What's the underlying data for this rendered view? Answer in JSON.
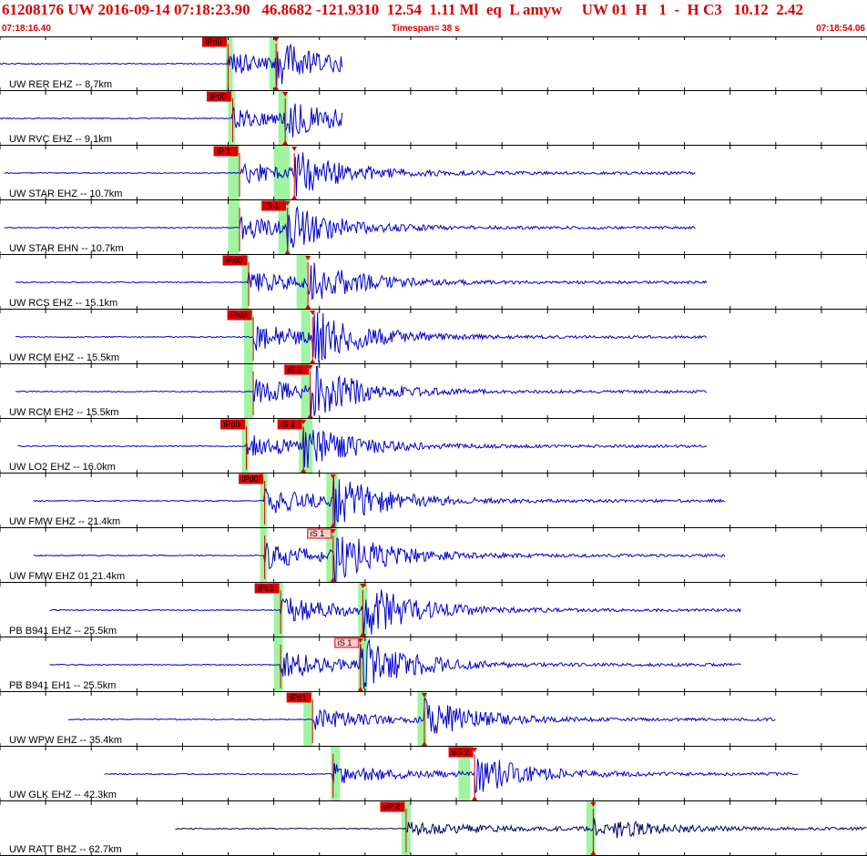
{
  "header": {
    "title": "61208176 UW 2016-09-14 07:18:23.90   46.8682 -121.9310  12.54  1.11 Ml  eq  L amyw     UW 01  H   1  -  H C3   10.12  2.42",
    "start_time": "07:18:16.40",
    "timespan": "Timespan=  38 s",
    "end_time": "07:18:54.06"
  },
  "colors": {
    "trace": "#0000cc",
    "accent": "#d80000",
    "window": "#9ff59f",
    "pick_box_light": "#ffcccc",
    "trace_last": "#000066"
  },
  "chart_data": {
    "type": "line",
    "title": "",
    "time_start_s": 0,
    "time_end_s": 38,
    "traces": [
      {
        "label": "UW RER EHZ -- 8.7km",
        "x0": 0,
        "x1": 15.0,
        "p": 10.0,
        "s": 12.1,
        "amp": 0.5,
        "pick": "iPd0",
        "pick_at": "p",
        "lightPick": false,
        "win": [
          [
            9.9,
            10.2
          ],
          [
            11.8,
            12.2
          ]
        ]
      },
      {
        "label": "UW RVC EHZ -- 9.1km",
        "x0": 0,
        "x1": 15.0,
        "p": 10.2,
        "s": 12.5,
        "amp": 0.45,
        "pick": "iPd0",
        "pick_at": "p",
        "lightPick": false,
        "win": [
          [
            10.0,
            10.3
          ],
          [
            12.2,
            12.6
          ]
        ]
      },
      {
        "label": "UW STAR EHZ -- 10.7km",
        "x0": 0.2,
        "x1": 30.5,
        "p": 10.5,
        "s": 12.9,
        "amp": 0.5,
        "pick": "iP 1",
        "pick_at": "p",
        "lightPick": false,
        "win": [
          [
            10.0,
            10.5
          ],
          [
            12.0,
            12.7
          ]
        ]
      },
      {
        "label": "UW STAR EHN -- 10.7km",
        "x0": 0.2,
        "x1": 30.5,
        "p": 10.5,
        "s": 12.6,
        "amp": 0.5,
        "pick": "iS 1",
        "pick_at": "s",
        "lightPick": false,
        "win": [
          [
            10.0,
            10.5
          ],
          [
            12.2,
            12.7
          ]
        ]
      },
      {
        "label": "UW RCS EHZ -- 15.1km",
        "x0": 0.7,
        "x1": 31.0,
        "p": 10.9,
        "s": 13.5,
        "amp": 0.5,
        "pick": "iPd0",
        "pick_at": "p",
        "lightPick": false,
        "win": [
          [
            10.6,
            10.9
          ],
          [
            13.0,
            13.5
          ]
        ]
      },
      {
        "label": "UW RCM EHZ -- 15.5km",
        "x0": 0.7,
        "x1": 31.0,
        "p": 11.1,
        "s": 13.7,
        "amp": 0.6,
        "pick": "iPd0",
        "pick_at": "p",
        "lightPick": false,
        "win": [
          [
            10.7,
            11.1
          ],
          [
            13.2,
            13.6
          ]
        ]
      },
      {
        "label": "UW RCM EH2 -- 15.5km",
        "x0": 0.7,
        "x1": 31.0,
        "p": 11.1,
        "s": 13.6,
        "amp": 0.6,
        "pick": "iS 1",
        "pick_at": "s",
        "lightPick": false,
        "win": [
          [
            10.7,
            11.1
          ],
          [
            13.2,
            13.6
          ]
        ]
      },
      {
        "label": "UW LO2 EHZ -- 16.0km",
        "x0": 0.8,
        "x1": 31.0,
        "p": 10.8,
        "s": 13.3,
        "amp": 0.5,
        "pick": "iPd0",
        "pick_at": "p",
        "lightPick": false,
        "win": [
          [
            10.6,
            10.9
          ],
          [
            13.1,
            13.7
          ]
        ],
        "pick2": "iS 1"
      },
      {
        "label": "UW FMW EHZ -- 21.4km",
        "x0": 1.5,
        "x1": 31.8,
        "p": 11.6,
        "s": 14.6,
        "amp": 0.6,
        "pick": "iPd0",
        "pick_at": "p",
        "lightPick": false,
        "win": [
          [
            11.4,
            11.7
          ],
          [
            14.3,
            14.8
          ]
        ]
      },
      {
        "label": "UW FMW EHZ 01 21.4km",
        "x0": 1.5,
        "x1": 31.8,
        "p": 11.6,
        "s": 14.6,
        "amp": 0.6,
        "pick": "iS 1",
        "pick_at": "s",
        "lightPick": true,
        "win": [
          [
            11.4,
            11.7
          ],
          [
            14.3,
            14.8
          ]
        ]
      },
      {
        "label": "PB B941 EHZ -- 25.5km",
        "x0": 2.2,
        "x1": 32.5,
        "p": 12.3,
        "s": 15.9,
        "amp": 0.6,
        "pick": "iPc1",
        "pick_at": "p",
        "lightPick": false,
        "win": [
          [
            12.0,
            12.4
          ],
          [
            15.7,
            16.1
          ]
        ]
      },
      {
        "label": "PB B941 EH1 -- 25.5km",
        "x0": 2.2,
        "x1": 32.5,
        "p": 12.3,
        "s": 15.8,
        "amp": 0.6,
        "pick": "iS 1",
        "pick_at": "s",
        "lightPick": true,
        "win": [
          [
            12.0,
            12.4
          ],
          [
            15.7,
            16.1
          ]
        ]
      },
      {
        "label": "UW WPW EHZ -- 35.4km",
        "x0": 3.0,
        "x1": 34.0,
        "p": 13.7,
        "s": 18.6,
        "amp": 0.45,
        "pick": "iPd1",
        "pick_at": "p",
        "lightPick": false,
        "win": [
          [
            13.3,
            13.7
          ],
          [
            18.3,
            18.7
          ]
        ]
      },
      {
        "label": "UW GLK EHZ -- 42.3km",
        "x0": 4.6,
        "x1": 35.0,
        "p": 14.6,
        "s": 20.8,
        "amp": 0.45,
        "pick": "eS 2",
        "pick_at": "s",
        "lightPick": false,
        "win": [
          [
            14.5,
            14.9
          ],
          [
            20.1,
            20.6
          ]
        ]
      },
      {
        "label": "UW RATT BHZ -- 62.7km",
        "x0": 7.7,
        "x1": 38.0,
        "p": 17.8,
        "s": 26.0,
        "amp": 0.3,
        "pick": "eP 2",
        "pick_at": "p",
        "lightPick": false,
        "win": [
          [
            17.6,
            18.0
          ],
          [
            25.7,
            26.1
          ]
        ]
      }
    ]
  }
}
